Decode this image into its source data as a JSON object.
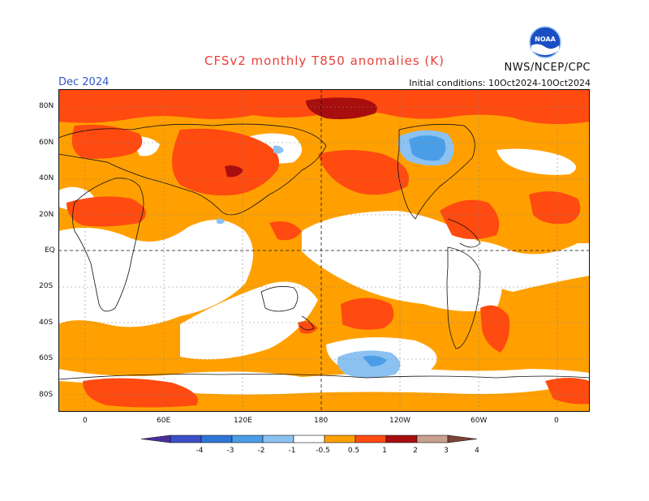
{
  "title": "CFSv2 monthly T850 anomalies (K)",
  "agency": "NWS/NCEP/CPC",
  "logo_text": "NOAA",
  "month": "Dec 2024",
  "initial_conditions": "Initial conditions: 10Oct2024-10Oct2024",
  "lat_labels": [
    "80N",
    "60N",
    "40N",
    "20N",
    "EQ",
    "20S",
    "40S",
    "60S",
    "80S"
  ],
  "lon_labels": [
    "0",
    "60E",
    "120E",
    "180",
    "120W",
    "60W",
    "0"
  ],
  "legend": {
    "labels": [
      "-4",
      "-3",
      "-2",
      "-1",
      "-0.5",
      "0.5",
      "1",
      "2",
      "3",
      "4"
    ],
    "colors": [
      "#4a2ea0",
      "#3a4fc8",
      "#2f75d8",
      "#4a9ee8",
      "#8cc2f2",
      "#ffffff",
      "#ffa000",
      "#ff4a10",
      "#a80e0e",
      "#c8a090",
      "#7a4438"
    ]
  },
  "colors": {
    "weak_warm": "#ffa000",
    "moderate_warm": "#ff4a10",
    "strong_warm": "#a80e0e",
    "weak_cool": "#8cc2f2",
    "moderate_cool": "#4a9ee8"
  }
}
